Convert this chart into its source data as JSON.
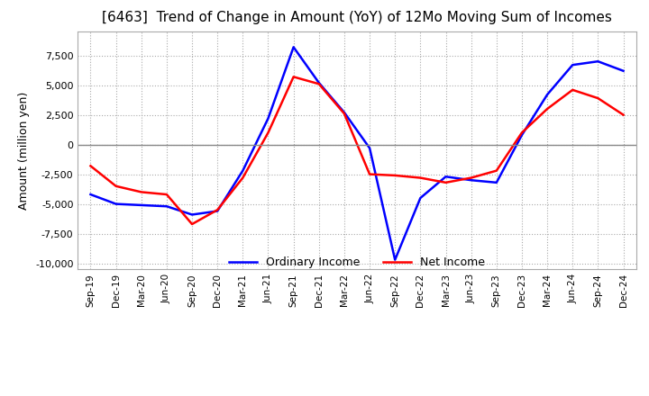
{
  "title": "[6463]  Trend of Change in Amount (YoY) of 12Mo Moving Sum of Incomes",
  "ylabel": "Amount (million yen)",
  "ylim": [
    -10500,
    9500
  ],
  "yticks": [
    -10000,
    -7500,
    -5000,
    -2500,
    0,
    2500,
    5000,
    7500
  ],
  "x_labels": [
    "Sep-19",
    "Dec-19",
    "Mar-20",
    "Jun-20",
    "Sep-20",
    "Dec-20",
    "Mar-21",
    "Jun-21",
    "Sep-21",
    "Dec-21",
    "Mar-22",
    "Jun-22",
    "Sep-22",
    "Dec-22",
    "Mar-23",
    "Jun-23",
    "Sep-23",
    "Dec-23",
    "Mar-24",
    "Jun-24",
    "Sep-24",
    "Dec-24"
  ],
  "ordinary_income": [
    -4200,
    -5000,
    -5100,
    -5200,
    -5900,
    -5600,
    -2200,
    2200,
    8200,
    5200,
    2700,
    -300,
    -9700,
    -4500,
    -2700,
    -3000,
    -3200,
    800,
    4200,
    6700,
    7000,
    6200
  ],
  "net_income": [
    -1800,
    -3500,
    -4000,
    -4200,
    -6700,
    -5500,
    -2800,
    1000,
    5700,
    5100,
    2600,
    -2500,
    -2600,
    -2800,
    -3200,
    -2800,
    -2200,
    1000,
    3000,
    4600,
    3900,
    2500
  ],
  "ordinary_color": "#0000ff",
  "net_color": "#ff0000",
  "bg_color": "#ffffff",
  "grid_color": "#aaaaaa",
  "zero_line_color": "#888888"
}
